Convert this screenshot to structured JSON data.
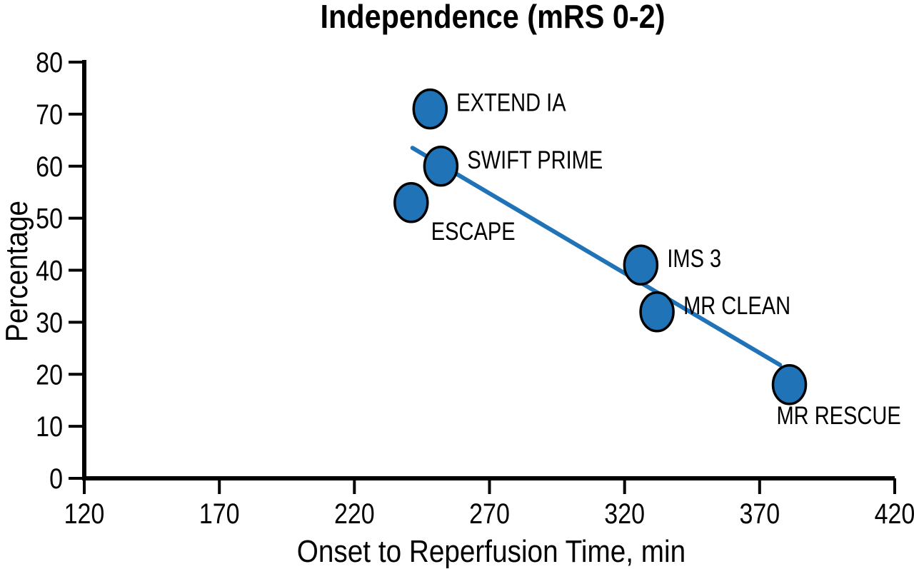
{
  "chart_data": {
    "type": "scatter",
    "title": "Independence (mRS 0-2)",
    "xlabel": "Onset to Reperfusion Time, min",
    "ylabel": "Percentage",
    "xlim": [
      120,
      420
    ],
    "ylim": [
      0,
      80
    ],
    "xticks": [
      120,
      170,
      220,
      270,
      320,
      370,
      420
    ],
    "yticks": [
      0,
      10,
      20,
      30,
      40,
      50,
      60,
      70,
      80
    ],
    "grid": false,
    "legend": null,
    "points": [
      {
        "label": "EXTEND IA",
        "x": 248,
        "y": 71,
        "label_side": "right"
      },
      {
        "label": "SWIFT PRIME",
        "x": 252,
        "y": 60,
        "label_side": "right"
      },
      {
        "label": "ESCAPE",
        "x": 241,
        "y": 53,
        "label_side": "below-right"
      },
      {
        "label": "IMS 3",
        "x": 326,
        "y": 41,
        "label_side": "right"
      },
      {
        "label": "MR CLEAN",
        "x": 332,
        "y": 32,
        "label_side": "right"
      },
      {
        "label": "MR RESCUE",
        "x": 381,
        "y": 18,
        "label_side": "below"
      }
    ],
    "trendline": {
      "x1": 241.5,
      "y1": 63.5,
      "x2": 377.5,
      "y2": 21.8
    },
    "colors": {
      "marker_fill": "#2173B8",
      "marker_stroke": "#000000",
      "trend_line": "#2173B8",
      "axis": "#000000",
      "background": "#FFFFFF"
    }
  }
}
